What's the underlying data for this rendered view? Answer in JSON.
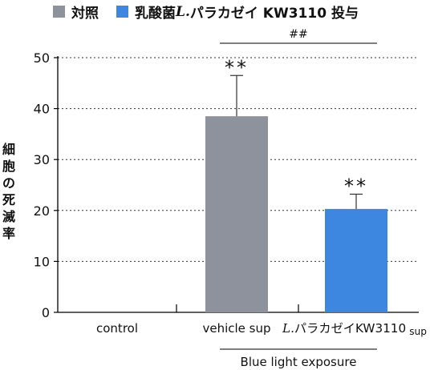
{
  "legend": {
    "items": [
      {
        "label": "対照",
        "color": "#8e929d"
      },
      {
        "label_prefix": "乳酸菌",
        "label_italic": "L.",
        "label_suffix": "パラカゼイ KW3110 投与",
        "color": "#3d87e0"
      }
    ]
  },
  "y_axis_label_chars": [
    "細",
    "胞",
    "の",
    "死",
    "滅",
    "率"
  ],
  "significance": {
    "bracket_label": "##",
    "star_label": "**"
  },
  "group_label": "Blue light exposure",
  "chart_data": {
    "type": "bar",
    "categories": [
      "control",
      "vehicle sup",
      "L.パラカゼイKW3110 sup"
    ],
    "category_display": [
      {
        "main": "control"
      },
      {
        "main": "vehicle sup"
      },
      {
        "italic": "L.",
        "main": "パラカゼイKW3110",
        "sub": "sup"
      }
    ],
    "values": [
      0,
      38.5,
      20.3
    ],
    "error_upper": [
      0,
      46.5,
      23.2
    ],
    "bar_colors": [
      "#8e929d",
      "#8e929d",
      "#3d87e0"
    ],
    "significant": [
      false,
      true,
      true
    ],
    "ylim": [
      0,
      50
    ],
    "yticks": [
      "0",
      "10",
      "20",
      "30",
      "40",
      "50"
    ],
    "grid": true,
    "ylabel": "細胞の死滅率",
    "xlabel": ""
  }
}
